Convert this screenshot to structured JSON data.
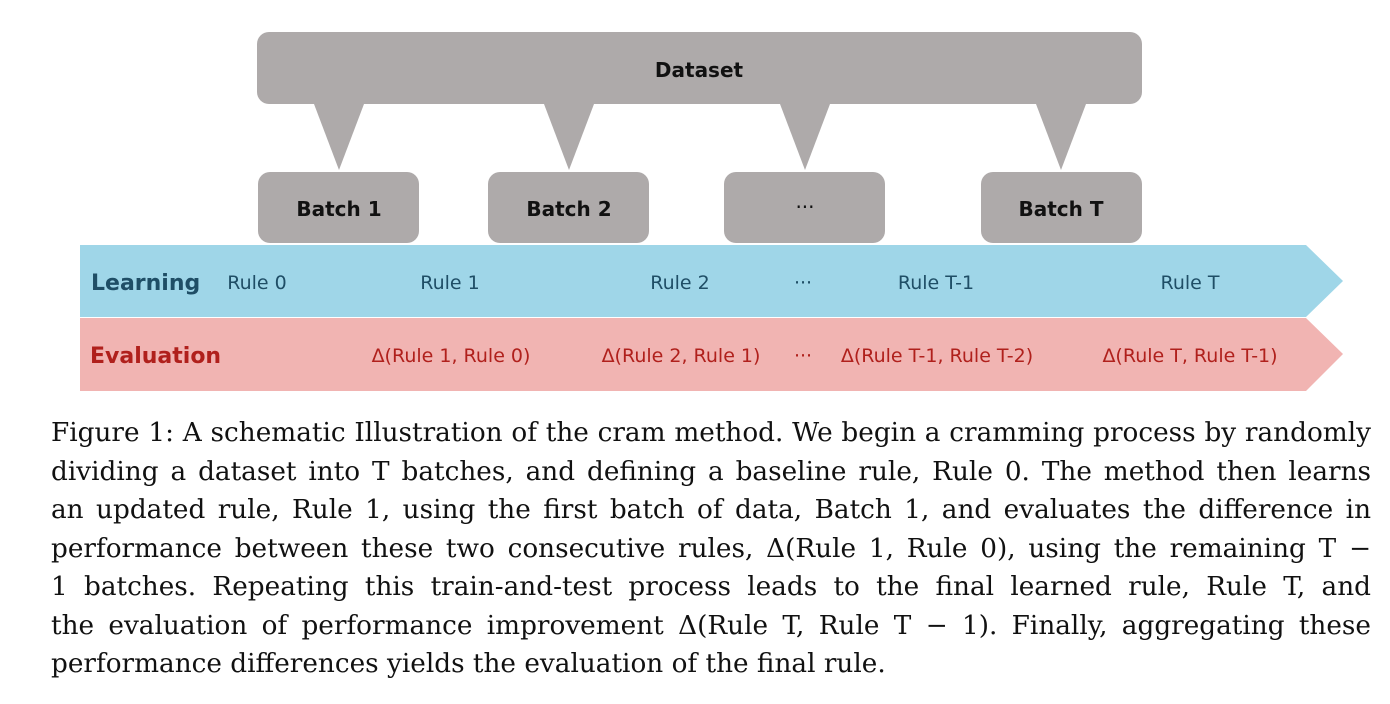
{
  "diagram": {
    "dataset_label": "Dataset",
    "batches": [
      "Batch 1",
      "Batch 2",
      "···",
      "Batch T"
    ],
    "learning": {
      "label": "Learning",
      "rules": [
        "Rule 0",
        "Rule 1",
        "Rule 2",
        "···",
        "Rule T-1",
        "Rule T"
      ]
    },
    "evaluation": {
      "label": "Evaluation",
      "deltas": [
        "Δ(Rule 1, Rule 0)",
        "Δ(Rule 2, Rule 1)",
        "···",
        "Δ(Rule T-1, Rule T-2)",
        "Δ(Rule T, Rule T-1)"
      ]
    },
    "colors": {
      "gray_box": "#aeaaaa",
      "learning_band": "#9fd6e8",
      "learning_text": "#1f4e66",
      "evaluation_band": "#f1b4b2",
      "evaluation_text": "#b0201c"
    }
  },
  "caption": {
    "lines": [
      "Figure 1: A schematic Illustration of the cram method. We begin a cramming process by randomly",
      "dividing a dataset into T batches, and defining a baseline rule, Rule 0. The method then learns",
      "an updated rule, Rule 1, using the first batch of data, Batch 1, and evaluates the difference in",
      "performance between these two consecutive rules, Δ(Rule 1, Rule 0), using the remaining T −",
      "1 batches. Repeating this train-and-test process leads to the final learned rule, Rule T, and",
      "the evaluation of performance improvement Δ(Rule T, Rule T − 1). Finally, aggregating these",
      "performance differences yields the evaluation of the final rule."
    ]
  }
}
